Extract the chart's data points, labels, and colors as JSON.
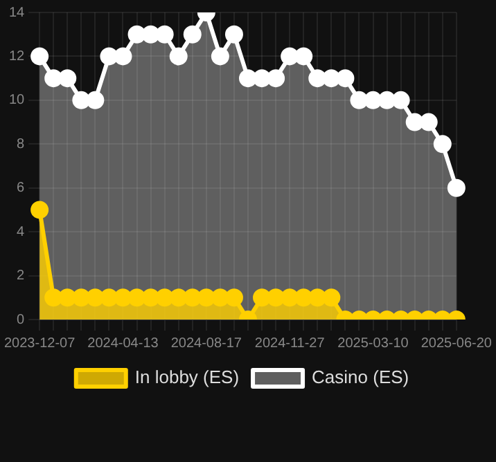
{
  "chart_data": {
    "type": "area",
    "categories": [
      "2023-12-07",
      null,
      null,
      null,
      null,
      null,
      "2024-04-13",
      null,
      null,
      null,
      null,
      null,
      "2024-08-17",
      null,
      null,
      null,
      null,
      null,
      "2024-11-27",
      null,
      null,
      null,
      null,
      null,
      "2025-03-10",
      null,
      null,
      null,
      null,
      null,
      "2025-06-20"
    ],
    "series": [
      {
        "name": "In lobby (ES)",
        "color": "#ffd000",
        "values": [
          5,
          1,
          1,
          1,
          1,
          1,
          1,
          1,
          1,
          1,
          1,
          1,
          1,
          1,
          1,
          0,
          1,
          1,
          1,
          1,
          1,
          1,
          0,
          0,
          0,
          0,
          0,
          0,
          0,
          0,
          0
        ]
      },
      {
        "name": "Casino (ES)",
        "color": "#ffffff",
        "values": [
          12,
          11,
          11,
          10,
          10,
          12,
          12,
          13,
          13,
          13,
          12,
          13,
          14,
          12,
          13,
          11,
          11,
          11,
          12,
          12,
          11,
          11,
          11,
          10,
          10,
          10,
          10,
          9,
          9,
          8,
          6
        ]
      }
    ],
    "ylim": [
      0,
      14
    ],
    "yticks": [
      0,
      2,
      4,
      6,
      8,
      10,
      12,
      14
    ],
    "grid": true,
    "legend": "bottom",
    "marker": "circle"
  }
}
